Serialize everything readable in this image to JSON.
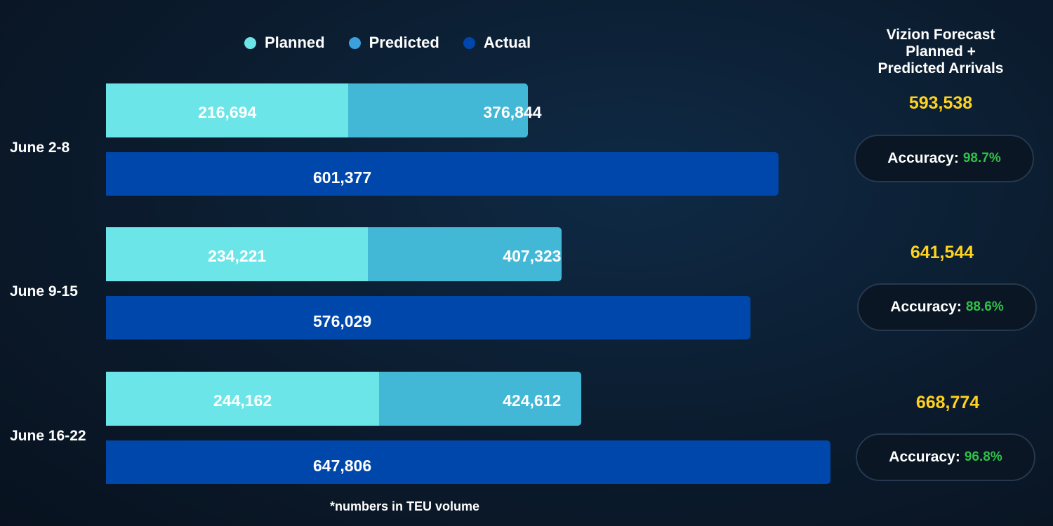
{
  "colors": {
    "planned": "#6ce5e8",
    "predicted": "#43b8d6",
    "actual": "#0047ab",
    "legend_predicted": "#3aa1de",
    "total": "#ffd21f",
    "accuracy": "#2fc24a"
  },
  "legend": {
    "planned": "Planned",
    "predicted": "Predicted",
    "actual": "Actual"
  },
  "side_header": {
    "line1": "Vizion Forecast",
    "line2": "Planned +",
    "line3": "Predicted Arrivals"
  },
  "accuracy_label": "Accuracy:",
  "footnote": "*numbers in TEU volume",
  "chart_data": {
    "type": "bar",
    "orientation": "horizontal",
    "categories": [
      "June 2-8",
      "June 9-15",
      "June 16-22"
    ],
    "series": [
      {
        "name": "Planned",
        "values": [
          216694,
          234221,
          244162
        ],
        "labels": [
          "216,694",
          "234,221",
          "244,162"
        ]
      },
      {
        "name": "Predicted",
        "values": [
          376844,
          407323,
          424612
        ],
        "labels": [
          "376,844",
          "407,323",
          "424,612"
        ]
      },
      {
        "name": "Actual",
        "values": [
          601377,
          576029,
          647806
        ],
        "labels": [
          "601,377",
          "576,029",
          "647,806"
        ]
      }
    ],
    "stacked_series": [
      "Planned",
      "Predicted"
    ],
    "totals": [
      "593,538",
      "641,544",
      "668,774"
    ],
    "accuracy": [
      "98.7%",
      "88.6%",
      "96.8%"
    ],
    "legend_position": "top"
  }
}
